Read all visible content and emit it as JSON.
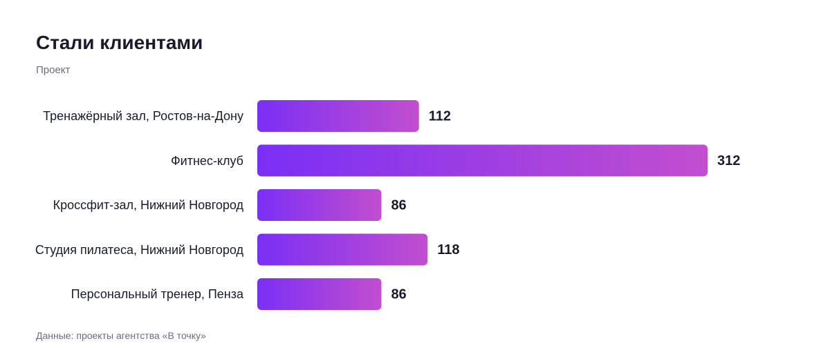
{
  "chart_data": {
    "type": "bar",
    "orientation": "horizontal",
    "title": "Стали клиентами",
    "subtitle": "Проект",
    "source": "Данные: проекты агентства «В точку»",
    "categories": [
      "Тренажёрный зал, Ростов-на-Дону",
      "Фитнес-клуб",
      "Кроссфит-зал, Нижний Новгород",
      "Студия пилатеса, Нижний Новгород",
      "Персональный тренер, Пенза"
    ],
    "values": [
      112,
      312,
      86,
      118,
      86
    ],
    "gradient": [
      "#7a2ff5",
      "#c24ecf"
    ]
  }
}
